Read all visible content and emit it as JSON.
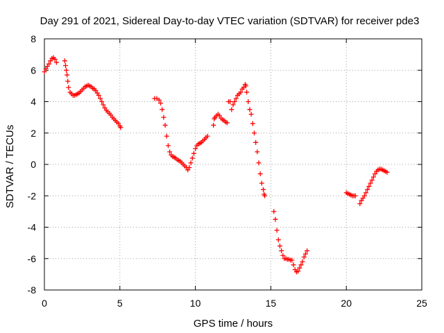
{
  "chart_data": {
    "type": "scatter",
    "title": "Day 291 of 2021, Sidereal Day-to-day VTEC variation (SDTVAR) for receiver pde3",
    "xlabel": "GPS time / hours",
    "ylabel": "SDTVAR / TECUs",
    "xlim": [
      0,
      25
    ],
    "ylim": [
      -8,
      8
    ],
    "xticks": [
      "0",
      "5",
      "10",
      "15",
      "20",
      "25"
    ],
    "yticks": [
      "-8",
      "-6",
      "-4",
      "-2",
      "0",
      "2",
      "4",
      "6",
      "8"
    ],
    "grid": true,
    "marker": "+",
    "color": "#ff0000",
    "series": [
      {
        "points": [
          [
            0.0,
            5.9
          ],
          [
            0.1,
            6.1
          ],
          [
            0.2,
            6.25
          ],
          [
            0.3,
            6.4
          ],
          [
            0.4,
            6.6
          ],
          [
            0.5,
            6.75
          ],
          [
            0.6,
            6.8
          ],
          [
            0.7,
            6.7
          ],
          [
            0.8,
            6.5
          ],
          [
            1.35,
            6.6
          ],
          [
            1.4,
            6.3
          ],
          [
            1.45,
            6.0
          ],
          [
            1.5,
            5.7
          ],
          [
            1.55,
            5.3
          ],
          [
            1.6,
            4.9
          ],
          [
            1.7,
            4.6
          ],
          [
            1.8,
            4.5
          ],
          [
            1.9,
            4.4
          ],
          [
            2.0,
            4.4
          ],
          [
            2.1,
            4.45
          ],
          [
            2.2,
            4.5
          ],
          [
            2.3,
            4.55
          ],
          [
            2.4,
            4.65
          ],
          [
            2.5,
            4.75
          ],
          [
            2.6,
            4.85
          ],
          [
            2.7,
            4.95
          ],
          [
            2.8,
            5.0
          ],
          [
            2.9,
            5.05
          ],
          [
            3.0,
            5.0
          ],
          [
            3.1,
            4.95
          ],
          [
            3.2,
            4.85
          ],
          [
            3.3,
            4.8
          ],
          [
            3.4,
            4.7
          ],
          [
            3.5,
            4.55
          ],
          [
            3.6,
            4.4
          ],
          [
            3.7,
            4.2
          ],
          [
            3.8,
            4.0
          ],
          [
            3.9,
            3.8
          ],
          [
            4.0,
            3.6
          ],
          [
            4.1,
            3.45
          ],
          [
            4.2,
            3.35
          ],
          [
            4.3,
            3.25
          ],
          [
            4.4,
            3.15
          ],
          [
            4.5,
            3.0
          ],
          [
            4.6,
            2.9
          ],
          [
            4.7,
            2.8
          ],
          [
            4.8,
            2.7
          ],
          [
            4.9,
            2.6
          ],
          [
            5.0,
            2.45
          ],
          [
            5.05,
            2.35
          ],
          [
            7.3,
            4.2
          ],
          [
            7.45,
            4.2
          ],
          [
            7.6,
            4.1
          ],
          [
            7.7,
            3.9
          ],
          [
            7.8,
            3.5
          ],
          [
            7.9,
            3.0
          ],
          [
            8.0,
            2.5
          ],
          [
            8.1,
            1.8
          ],
          [
            8.2,
            1.2
          ],
          [
            8.3,
            0.8
          ],
          [
            8.4,
            0.6
          ],
          [
            8.5,
            0.5
          ],
          [
            8.6,
            0.45
          ],
          [
            8.7,
            0.4
          ],
          [
            8.8,
            0.3
          ],
          [
            8.9,
            0.25
          ],
          [
            9.0,
            0.2
          ],
          [
            9.1,
            0.1
          ],
          [
            9.2,
            0.0
          ],
          [
            9.3,
            -0.1
          ],
          [
            9.4,
            -0.2
          ],
          [
            9.5,
            -0.35
          ],
          [
            9.6,
            -0.2
          ],
          [
            9.7,
            0.1
          ],
          [
            9.8,
            0.4
          ],
          [
            9.9,
            0.7
          ],
          [
            10.0,
            1.0
          ],
          [
            10.1,
            1.2
          ],
          [
            10.2,
            1.3
          ],
          [
            10.3,
            1.35
          ],
          [
            10.4,
            1.4
          ],
          [
            10.5,
            1.5
          ],
          [
            10.6,
            1.6
          ],
          [
            10.7,
            1.7
          ],
          [
            10.8,
            1.8
          ],
          [
            11.2,
            2.5
          ],
          [
            11.25,
            2.9
          ],
          [
            11.3,
            3.0
          ],
          [
            11.4,
            3.1
          ],
          [
            11.5,
            3.2
          ],
          [
            11.6,
            3.1
          ],
          [
            11.7,
            2.95
          ],
          [
            11.8,
            2.85
          ],
          [
            11.9,
            2.8
          ],
          [
            12.0,
            2.7
          ],
          [
            12.1,
            2.65
          ],
          [
            12.2,
            4.0
          ],
          [
            12.3,
            4.0
          ],
          [
            12.4,
            3.5
          ],
          [
            12.5,
            3.8
          ],
          [
            12.6,
            4.0
          ],
          [
            12.7,
            4.2
          ],
          [
            12.8,
            4.4
          ],
          [
            12.9,
            4.5
          ],
          [
            13.0,
            4.6
          ],
          [
            13.1,
            4.8
          ],
          [
            13.2,
            4.9
          ],
          [
            13.3,
            5.1
          ],
          [
            13.35,
            5.0
          ],
          [
            13.4,
            4.6
          ],
          [
            13.5,
            4.0
          ],
          [
            13.6,
            3.5
          ],
          [
            13.7,
            3.2
          ],
          [
            13.8,
            2.6
          ],
          [
            13.9,
            2.0
          ],
          [
            14.0,
            1.4
          ],
          [
            14.1,
            0.8
          ],
          [
            14.2,
            0.1
          ],
          [
            14.3,
            -0.6
          ],
          [
            14.4,
            -1.2
          ],
          [
            14.5,
            -1.6
          ],
          [
            14.55,
            -1.9
          ],
          [
            14.6,
            -2.0
          ],
          [
            15.2,
            -3.0
          ],
          [
            15.3,
            -3.5
          ],
          [
            15.4,
            -4.2
          ],
          [
            15.5,
            -4.8
          ],
          [
            15.6,
            -5.2
          ],
          [
            15.7,
            -5.5
          ],
          [
            15.8,
            -5.8
          ],
          [
            15.9,
            -6.0
          ],
          [
            16.0,
            -6.0
          ],
          [
            16.1,
            -6.05
          ],
          [
            16.2,
            -6.05
          ],
          [
            16.3,
            -6.1
          ],
          [
            16.4,
            -6.1
          ],
          [
            16.5,
            -6.4
          ],
          [
            16.6,
            -6.7
          ],
          [
            16.7,
            -6.85
          ],
          [
            16.8,
            -6.8
          ],
          [
            16.9,
            -6.6
          ],
          [
            17.0,
            -6.4
          ],
          [
            17.1,
            -6.2
          ],
          [
            17.2,
            -5.9
          ],
          [
            17.3,
            -5.7
          ],
          [
            17.4,
            -5.5
          ],
          [
            20.0,
            -1.8
          ],
          [
            20.1,
            -1.85
          ],
          [
            20.2,
            -1.9
          ],
          [
            20.3,
            -1.95
          ],
          [
            20.4,
            -2.0
          ],
          [
            20.5,
            -2.0
          ],
          [
            20.6,
            -2.0
          ],
          [
            20.9,
            -2.5
          ],
          [
            21.0,
            -2.3
          ],
          [
            21.1,
            -2.15
          ],
          [
            21.2,
            -2.0
          ],
          [
            21.3,
            -1.8
          ],
          [
            21.4,
            -1.6
          ],
          [
            21.5,
            -1.4
          ],
          [
            21.6,
            -1.2
          ],
          [
            21.7,
            -1.0
          ],
          [
            21.8,
            -0.8
          ],
          [
            21.9,
            -0.6
          ],
          [
            22.0,
            -0.45
          ],
          [
            22.1,
            -0.35
          ],
          [
            22.2,
            -0.3
          ],
          [
            22.3,
            -0.3
          ],
          [
            22.4,
            -0.35
          ],
          [
            22.5,
            -0.4
          ],
          [
            22.6,
            -0.45
          ],
          [
            22.7,
            -0.5
          ]
        ]
      }
    ]
  }
}
